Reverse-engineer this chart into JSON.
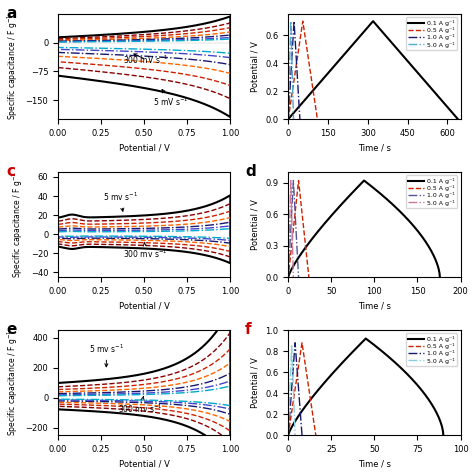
{
  "bg_color": "#ffffff",
  "panel_label_color_a": "#000000",
  "panel_label_color_c": "#CC0000",
  "panel_label_color_e": "#000000",
  "panel_label_color_f": "#CC0000",
  "gcd_currents": [
    "0.1 A g⁻¹",
    "0.5 A g⁻¹",
    "1.0 A g⁻¹",
    "5.0 A g⁻¹"
  ],
  "cv_colors": [
    "#000000",
    "#8B0000",
    "#CC2200",
    "#FF6600",
    "#191970",
    "#4444CC",
    "#00AACC"
  ],
  "cv_styles": [
    "-",
    "--",
    "--",
    "--",
    "-.",
    "-.",
    "-."
  ],
  "cv_lws": [
    1.5,
    1.0,
    1.0,
    1.0,
    1.0,
    1.0,
    1.0
  ],
  "gcd_colors_b": [
    "#000000",
    "#CC2200",
    "#191970",
    "#55AACC"
  ],
  "gcd_colors_d": [
    "#000000",
    "#CC2200",
    "#555599",
    "#CC7799"
  ],
  "gcd_colors_f": [
    "#000000",
    "#CC2200",
    "#191970",
    "#88CCDD"
  ],
  "gcd_styles": [
    "-",
    "--",
    "-.",
    "-."
  ],
  "gcd_lws": [
    1.5,
    1.0,
    1.0,
    1.0
  ]
}
